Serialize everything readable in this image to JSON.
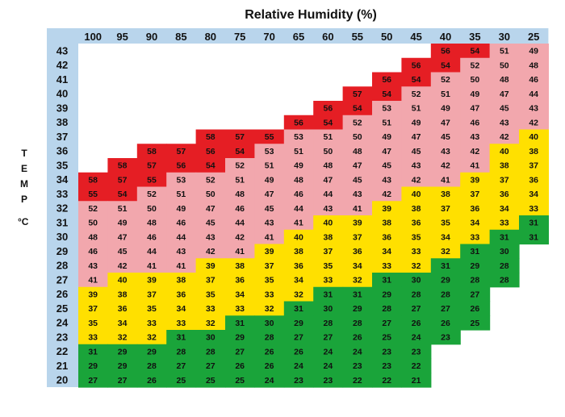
{
  "chart_data": {
    "type": "heatmap",
    "title": "Relative Humidity (%)",
    "row_axis_label": "TEMP",
    "row_axis_unit": "°C",
    "columns": [
      100,
      95,
      90,
      85,
      80,
      75,
      70,
      65,
      60,
      55,
      50,
      45,
      40,
      35,
      30,
      25
    ],
    "rows": [
      {
        "temp": 43,
        "values": [
          null,
          null,
          null,
          null,
          null,
          null,
          null,
          null,
          null,
          null,
          null,
          null,
          56,
          54,
          51,
          49
        ]
      },
      {
        "temp": 42,
        "values": [
          null,
          null,
          null,
          null,
          null,
          null,
          null,
          null,
          null,
          null,
          null,
          56,
          54,
          52,
          50,
          48
        ]
      },
      {
        "temp": 41,
        "values": [
          null,
          null,
          null,
          null,
          null,
          null,
          null,
          null,
          null,
          null,
          56,
          54,
          52,
          50,
          48,
          46
        ]
      },
      {
        "temp": 40,
        "values": [
          null,
          null,
          null,
          null,
          null,
          null,
          null,
          null,
          null,
          57,
          54,
          52,
          51,
          49,
          47,
          44
        ]
      },
      {
        "temp": 39,
        "values": [
          null,
          null,
          null,
          null,
          null,
          null,
          null,
          null,
          56,
          54,
          53,
          51,
          49,
          47,
          45,
          43
        ]
      },
      {
        "temp": 38,
        "values": [
          null,
          null,
          null,
          null,
          null,
          null,
          null,
          56,
          54,
          52,
          51,
          49,
          47,
          46,
          43,
          42
        ]
      },
      {
        "temp": 37,
        "values": [
          null,
          null,
          null,
          null,
          58,
          57,
          55,
          53,
          51,
          50,
          49,
          47,
          45,
          43,
          42,
          40
        ]
      },
      {
        "temp": 36,
        "values": [
          null,
          null,
          58,
          57,
          56,
          54,
          53,
          51,
          50,
          48,
          47,
          45,
          43,
          42,
          40,
          38
        ]
      },
      {
        "temp": 35,
        "values": [
          null,
          58,
          57,
          56,
          54,
          52,
          51,
          49,
          48,
          47,
          45,
          43,
          42,
          41,
          38,
          37
        ]
      },
      {
        "temp": 34,
        "values": [
          58,
          57,
          55,
          53,
          52,
          51,
          49,
          48,
          47,
          45,
          43,
          42,
          41,
          39,
          37,
          36
        ]
      },
      {
        "temp": 33,
        "values": [
          55,
          54,
          52,
          51,
          50,
          48,
          47,
          46,
          44,
          43,
          42,
          40,
          38,
          37,
          36,
          34
        ]
      },
      {
        "temp": 32,
        "values": [
          52,
          51,
          50,
          49,
          47,
          46,
          45,
          44,
          43,
          41,
          39,
          38,
          37,
          36,
          34,
          33
        ]
      },
      {
        "temp": 31,
        "values": [
          50,
          49,
          48,
          46,
          45,
          44,
          43,
          41,
          40,
          39,
          38,
          36,
          35,
          34,
          33,
          31
        ]
      },
      {
        "temp": 30,
        "values": [
          48,
          47,
          46,
          44,
          43,
          42,
          41,
          40,
          38,
          37,
          36,
          35,
          34,
          33,
          31,
          31
        ]
      },
      {
        "temp": 29,
        "values": [
          46,
          45,
          44,
          43,
          42,
          41,
          39,
          38,
          37,
          36,
          34,
          33,
          32,
          31,
          30,
          null
        ]
      },
      {
        "temp": 28,
        "values": [
          43,
          42,
          41,
          41,
          39,
          38,
          37,
          36,
          35,
          34,
          33,
          32,
          31,
          29,
          28,
          null
        ]
      },
      {
        "temp": 27,
        "values": [
          41,
          40,
          39,
          38,
          37,
          36,
          35,
          34,
          33,
          32,
          31,
          30,
          29,
          28,
          28,
          null
        ]
      },
      {
        "temp": 26,
        "values": [
          39,
          38,
          37,
          36,
          35,
          34,
          33,
          32,
          31,
          31,
          29,
          28,
          28,
          27,
          null,
          null
        ]
      },
      {
        "temp": 25,
        "values": [
          37,
          36,
          35,
          34,
          33,
          33,
          32,
          31,
          30,
          29,
          28,
          27,
          27,
          26,
          null,
          null
        ]
      },
      {
        "temp": 24,
        "values": [
          35,
          34,
          33,
          33,
          32,
          31,
          30,
          29,
          28,
          28,
          27,
          26,
          26,
          25,
          null,
          null
        ]
      },
      {
        "temp": 23,
        "values": [
          33,
          32,
          32,
          31,
          30,
          29,
          28,
          27,
          27,
          26,
          25,
          24,
          23,
          null,
          null,
          null
        ]
      },
      {
        "temp": 22,
        "values": [
          31,
          29,
          29,
          28,
          28,
          27,
          26,
          26,
          24,
          24,
          23,
          23,
          null,
          null,
          null,
          null
        ]
      },
      {
        "temp": 21,
        "values": [
          29,
          29,
          28,
          27,
          27,
          26,
          26,
          24,
          24,
          23,
          23,
          22,
          null,
          null,
          null,
          null
        ]
      },
      {
        "temp": 20,
        "values": [
          27,
          27,
          26,
          25,
          25,
          25,
          24,
          23,
          23,
          22,
          22,
          21,
          null,
          null,
          null,
          null
        ]
      }
    ],
    "color_bands": [
      {
        "from": 54,
        "color": "#e51e24"
      },
      {
        "from": 41,
        "color": "#f2a7ad"
      },
      {
        "from": 32,
        "color": "#ffe000"
      },
      {
        "from": 0,
        "color": "#1aa43a"
      }
    ],
    "axis_fill": "#b9d5ec",
    "legend": "none"
  }
}
